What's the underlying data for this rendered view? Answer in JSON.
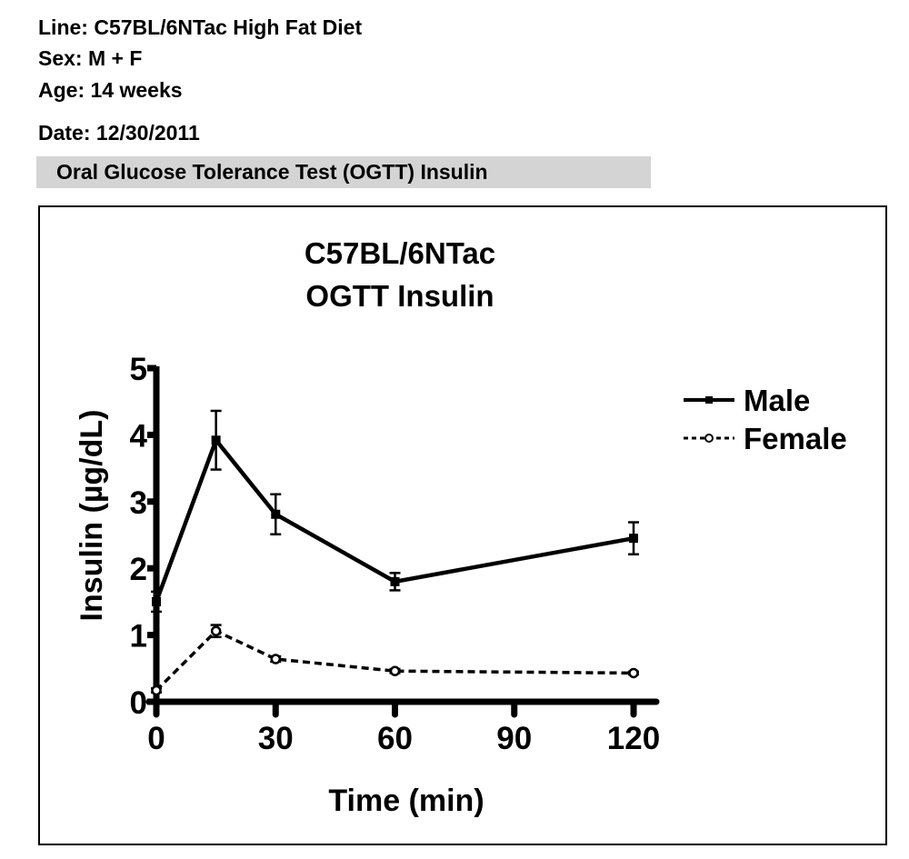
{
  "header": {
    "line": "Line: C57BL/6NTac High Fat Diet",
    "sex": "Sex: M + F",
    "age": "Age: 14 weeks",
    "date": "Date: 12/30/2011",
    "banner": "Oral Glucose Tolerance Test (OGTT) Insulin"
  },
  "chart_data": {
    "type": "line",
    "title": [
      "C57BL/6NTac",
      "OGTT Insulin"
    ],
    "xlabel": "Time (min)",
    "ylabel": "Insulin (µg/dL)",
    "xlim": [
      0,
      120
    ],
    "ylim": [
      0,
      5
    ],
    "xticks": [
      "0",
      "30",
      "60",
      "90",
      "120"
    ],
    "yticks": [
      "0",
      "1",
      "2",
      "3",
      "4",
      "5"
    ],
    "grid": false,
    "legend": "right",
    "x": [
      0,
      15,
      30,
      60,
      120
    ],
    "series": [
      {
        "name": "Male",
        "values": [
          1.5,
          3.92,
          2.81,
          1.8,
          2.45
        ],
        "errors": [
          0.15,
          0.44,
          0.3,
          0.13,
          0.24
        ],
        "style": "solid",
        "marker": "filled-square",
        "color": "#000000"
      },
      {
        "name": "Female",
        "values": [
          0.17,
          1.06,
          0.64,
          0.46,
          0.43
        ],
        "errors": [
          0.03,
          0.09,
          0.04,
          0.03,
          0.02
        ],
        "style": "dashed",
        "marker": "open-circle",
        "color": "#000000"
      }
    ]
  }
}
